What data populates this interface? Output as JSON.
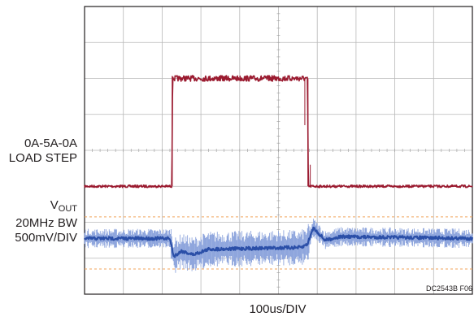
{
  "chart_data": {
    "type": "line",
    "title": "",
    "grid": true,
    "divisions": {
      "x": 10,
      "y": 8
    },
    "time_per_div_us": 100,
    "x_label": "100us/DIV",
    "figure_id": "DC2543B F06",
    "series": [
      {
        "name": "0A-5A-0A LOAD STEP",
        "label_lines": [
          "0A-5A-0A",
          "LOAD STEP"
        ],
        "color": "#9b1b30",
        "baseline_div": 5.0,
        "high_div": 2.0,
        "points": [
          [
            0,
            5.0
          ],
          [
            2.25,
            5.0
          ],
          [
            2.27,
            2.0
          ],
          [
            5.75,
            2.0
          ],
          [
            5.77,
            5.0
          ],
          [
            10,
            5.0
          ]
        ]
      },
      {
        "name": "VOUT",
        "label_main": "V",
        "label_sub": "OUT",
        "label_lines": [
          "20MHz BW",
          "500mV/DIV"
        ],
        "color": "#2b4fa8",
        "center_div": 6.45,
        "points": [
          [
            0,
            6.45
          ],
          [
            2.2,
            6.45
          ],
          [
            2.3,
            6.95
          ],
          [
            2.5,
            6.8
          ],
          [
            2.8,
            6.9
          ],
          [
            3.2,
            6.75
          ],
          [
            5.6,
            6.7
          ],
          [
            5.75,
            6.6
          ],
          [
            5.9,
            6.15
          ],
          [
            6.2,
            6.5
          ],
          [
            6.6,
            6.4
          ],
          [
            10,
            6.45
          ]
        ]
      }
    ],
    "reference_levels_div": [
      5.85,
      7.3
    ]
  }
}
